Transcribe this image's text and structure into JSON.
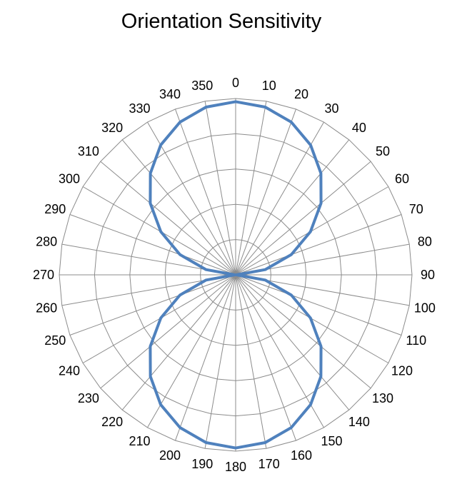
{
  "chart_data": {
    "type": "radar",
    "title": "Orientation Sensitivity",
    "categories": [
      "0",
      "10",
      "20",
      "30",
      "40",
      "50",
      "60",
      "70",
      "80",
      "90",
      "100",
      "110",
      "120",
      "130",
      "140",
      "150",
      "160",
      "170",
      "180",
      "190",
      "200",
      "210",
      "220",
      "230",
      "240",
      "250",
      "260",
      "270",
      "280",
      "290",
      "300",
      "310",
      "320",
      "330",
      "340",
      "350"
    ],
    "angles_deg": [
      0,
      10,
      20,
      30,
      40,
      50,
      60,
      70,
      80,
      90,
      100,
      110,
      120,
      130,
      140,
      150,
      160,
      170,
      180,
      190,
      200,
      210,
      220,
      230,
      240,
      250,
      260,
      270,
      280,
      290,
      300,
      310,
      320,
      330,
      340,
      350
    ],
    "rlim": [
      0,
      5
    ],
    "ring_count": 5,
    "grid": true,
    "legend": "none",
    "series": [
      {
        "values": [
          4.91,
          4.83,
          4.61,
          4.25,
          3.76,
          3.16,
          2.45,
          1.68,
          0.85,
          0.02,
          0.85,
          1.68,
          2.45,
          3.16,
          3.76,
          4.25,
          4.61,
          4.83,
          4.91,
          4.83,
          4.61,
          4.25,
          3.76,
          3.16,
          2.45,
          1.68,
          0.85,
          0.02,
          0.85,
          1.68,
          2.45,
          3.16,
          3.76,
          4.25,
          4.61,
          4.83
        ],
        "color": "#4F81BD"
      }
    ]
  }
}
